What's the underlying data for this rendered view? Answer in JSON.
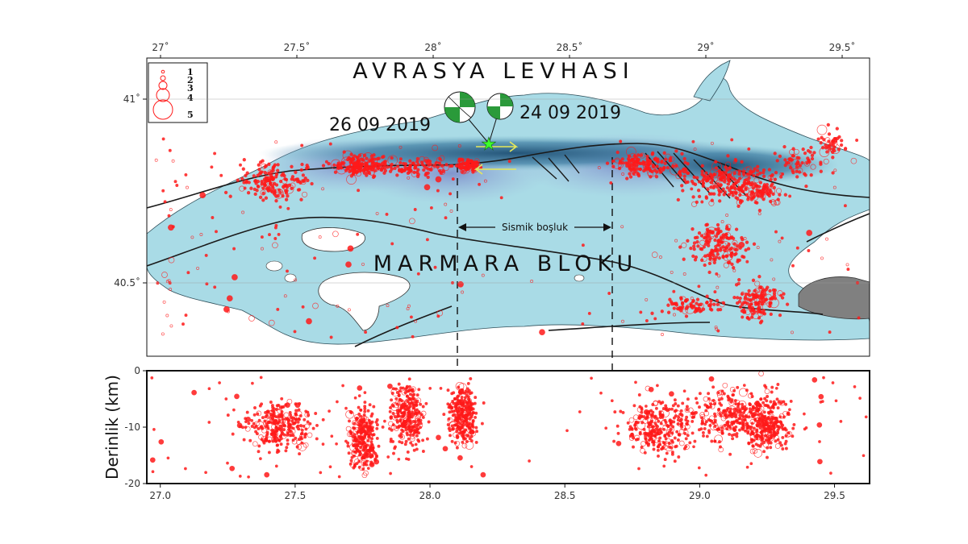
{
  "map": {
    "title_north": "AVRASYA LEVHASI",
    "title_south": "MARMARA BLOKU",
    "event_labels": [
      "26 09 2019",
      "24 09 2019"
    ],
    "gap_label": "Sismik boşluk",
    "lon_ticks": [
      "27˚",
      "27.5˚",
      "28˚",
      "28.5˚",
      "29˚",
      "29.5˚"
    ],
    "lat_ticks": [
      "41˚",
      "40.5˚"
    ],
    "legend": {
      "labels": [
        "1",
        "2",
        "3",
        "4",
        "5"
      ]
    },
    "colors": {
      "sea_light": "#a9dbe6",
      "sea_deep": "#1d4e73",
      "quake": "#ff1a1a",
      "fault": "#1a1a1a",
      "beachball": "#2a9a3a",
      "star": "#3cff2a",
      "arrow": "#e6e85a",
      "land": "#ffffff",
      "neighbor": "#808080"
    }
  },
  "chart_data": {
    "type": "scatter",
    "ylabel": "Derinlik (km)",
    "x_tick_labels": [
      "27.0",
      "27.5",
      "28.0",
      "28.5",
      "29.0",
      "29.5"
    ],
    "y_tick_labels": [
      "0",
      "-10",
      "-20"
    ],
    "xlim": [
      26.95,
      29.63
    ],
    "ylim": [
      -20,
      0
    ],
    "gap_range": [
      28.09,
      28.65
    ],
    "clusters": [
      {
        "lon": 27.45,
        "depth": -10,
        "spread_lon": 0.12,
        "spread_depth": 4
      },
      {
        "lon": 27.75,
        "depth": -12,
        "spread_lon": 0.05,
        "spread_depth": 5
      },
      {
        "lon": 27.92,
        "depth": -8,
        "spread_lon": 0.06,
        "spread_depth": 5
      },
      {
        "lon": 28.12,
        "depth": -8,
        "spread_lon": 0.05,
        "spread_depth": 5
      },
      {
        "lon": 28.85,
        "depth": -10,
        "spread_lon": 0.12,
        "spread_depth": 5
      },
      {
        "lon": 29.1,
        "depth": -8,
        "spread_lon": 0.15,
        "spread_depth": 5
      },
      {
        "lon": 29.25,
        "depth": -9,
        "spread_lon": 0.08,
        "spread_depth": 5
      }
    ]
  }
}
